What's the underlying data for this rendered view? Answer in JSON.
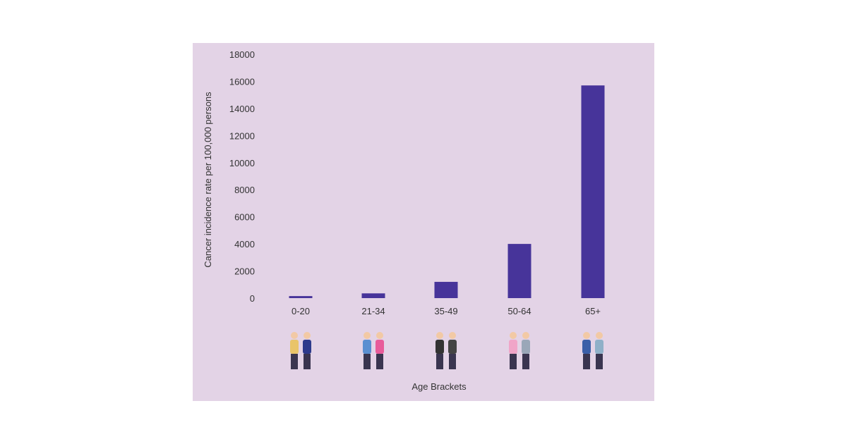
{
  "chart_data": {
    "type": "bar",
    "categories": [
      "0-20",
      "21-34",
      "35-49",
      "50-64",
      "65+"
    ],
    "values": [
      150,
      350,
      1200,
      4000,
      15700
    ],
    "title": "",
    "xlabel": "Age Brackets",
    "ylabel": "Cancer incidence rate per 100,000 persons",
    "ylim": [
      0,
      18000
    ],
    "yticks": [
      0,
      2000,
      4000,
      6000,
      8000,
      10000,
      12000,
      14000,
      16000,
      18000
    ],
    "grid": false,
    "legend": "none",
    "colors": {
      "bar": "#47349a",
      "background": "#e3d3e6"
    },
    "category_icons": [
      "children-icon",
      "young-adults-icon",
      "business-people-icon",
      "middle-aged-couple-icon",
      "elderly-couple-icon"
    ]
  }
}
